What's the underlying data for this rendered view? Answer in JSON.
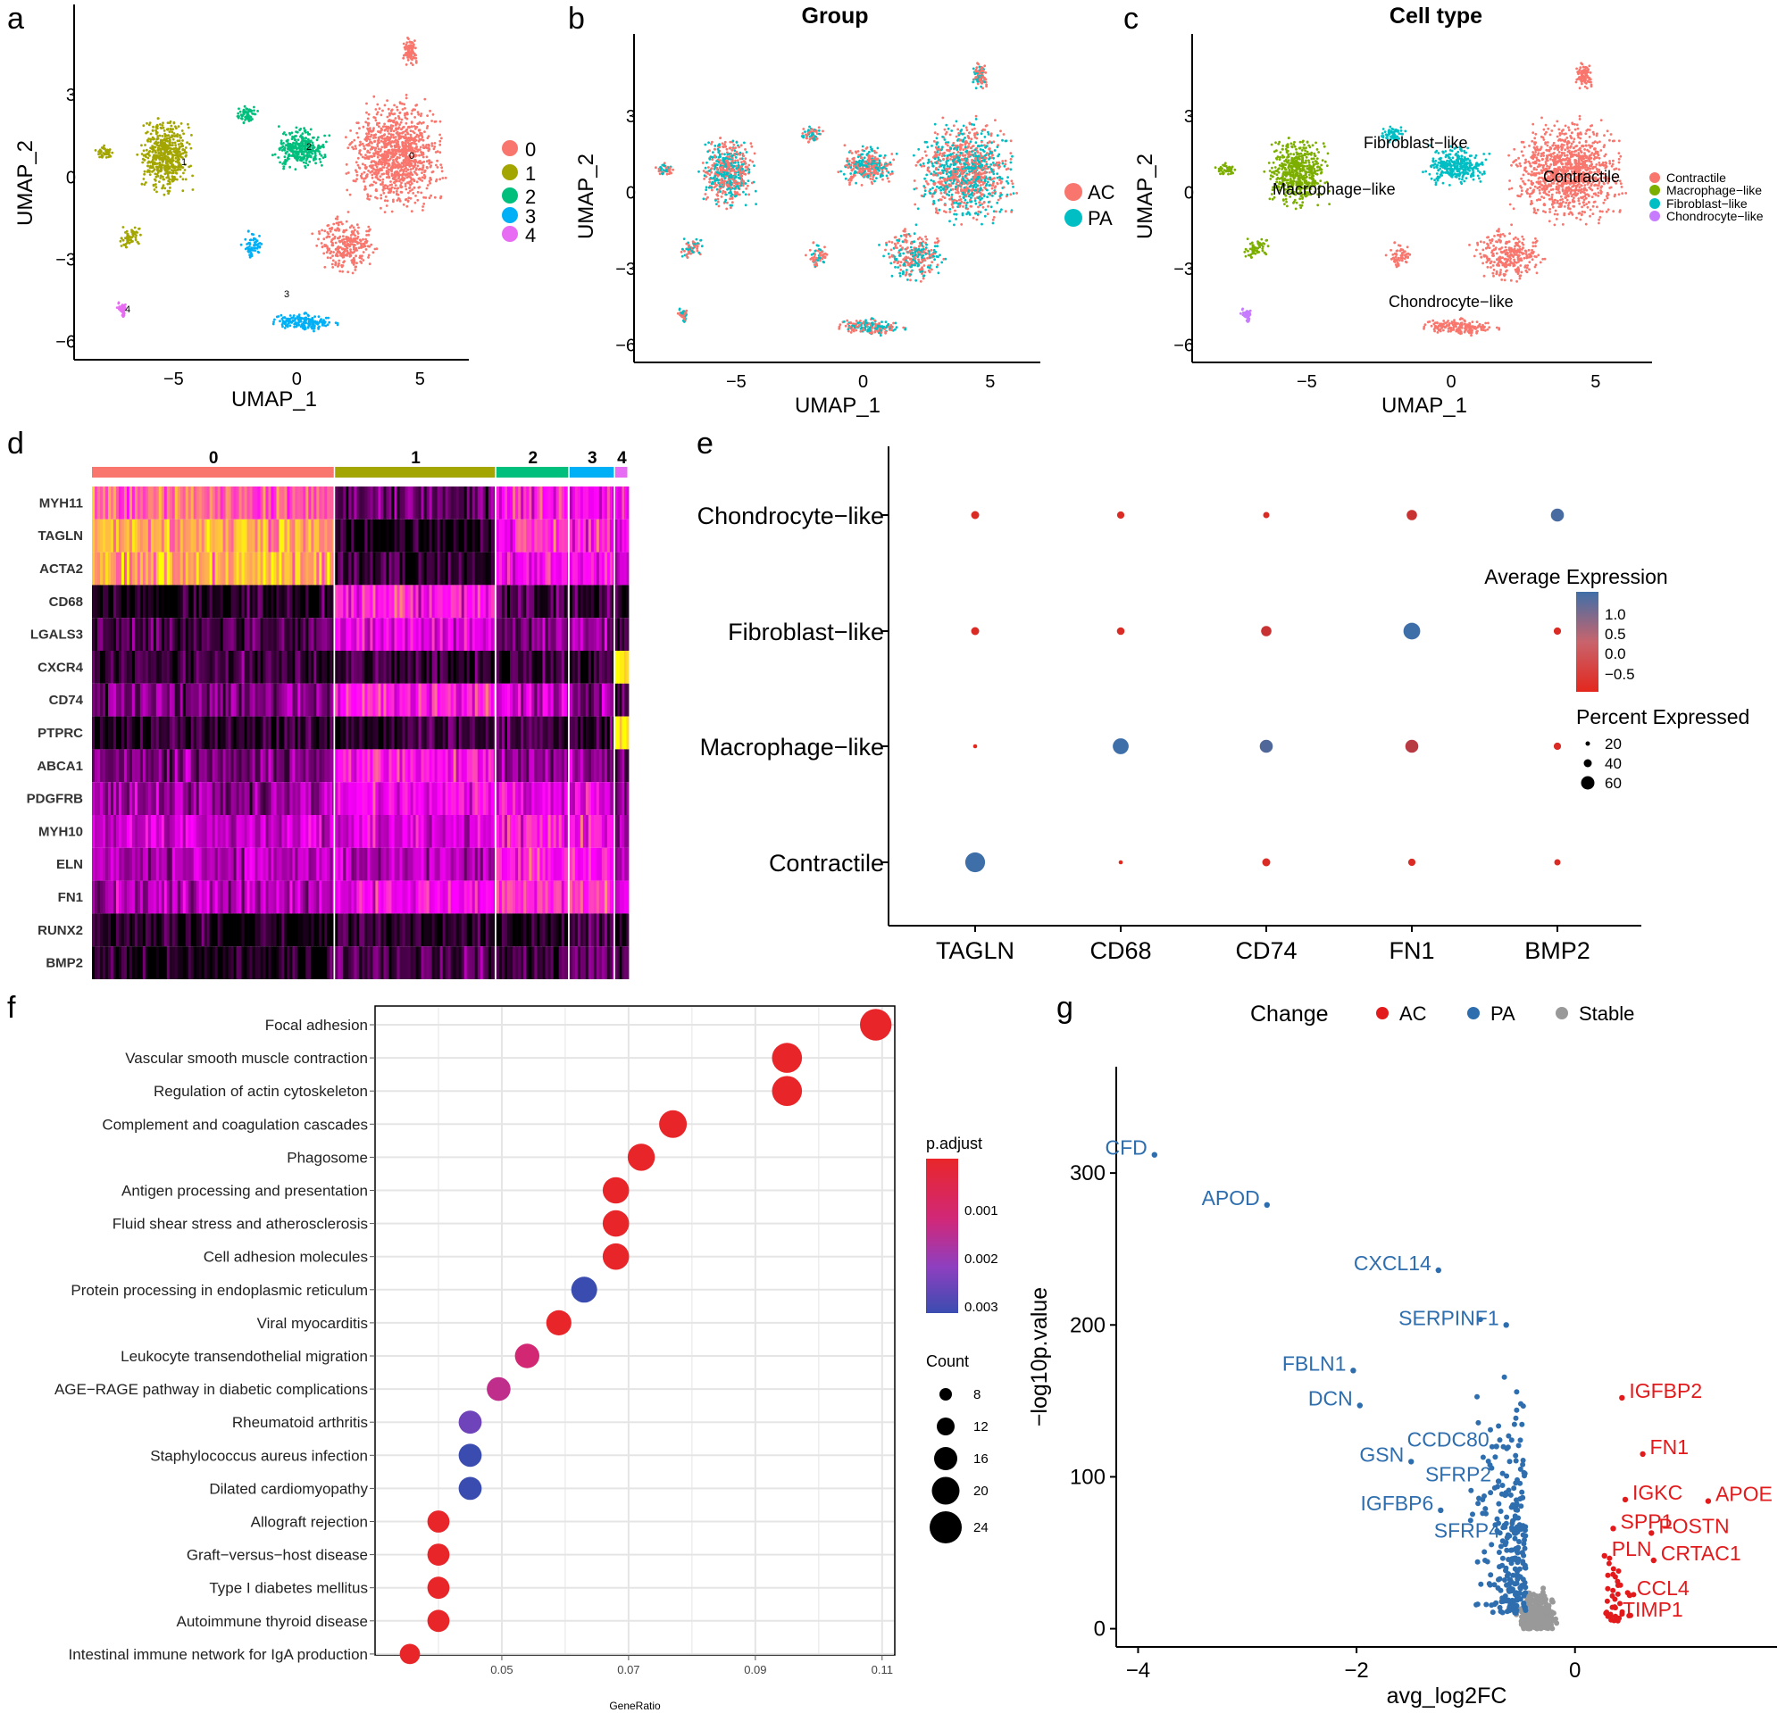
{
  "panels": {
    "a": "a",
    "b": "b",
    "c": "c",
    "d": "d",
    "e": "e",
    "f": "f",
    "g": "g"
  },
  "umap": {
    "xlabel": "UMAP_1",
    "ylabel": "UMAP_2",
    "xticks": [
      -5,
      0,
      5
    ],
    "yticks": [
      3,
      0,
      -3,
      -6
    ],
    "a": {
      "legend": [
        "0",
        "1",
        "2",
        "3",
        "4"
      ],
      "cluster_labels": [
        "0",
        "1",
        "2",
        "3",
        "4"
      ],
      "colors": [
        "#F8766D",
        "#A3A500",
        "#00BF7D",
        "#00B0F6",
        "#E76BF3"
      ]
    },
    "b": {
      "title": "Group",
      "legend": [
        "AC",
        "PA"
      ],
      "colors": [
        "#F8766D",
        "#00BFC4"
      ]
    },
    "c": {
      "title": "Cell type",
      "legend": [
        "Contractile",
        "Macrophage−like",
        "Fibroblast−like",
        "Chondrocyte−like"
      ],
      "labels": [
        "Fibroblast−like",
        "Macrophage−like",
        "Contractile",
        "Chondrocyte−like"
      ],
      "colors": [
        "#F8766D",
        "#7CAE00",
        "#00BFC4",
        "#C77CFF"
      ]
    }
  },
  "chart_data": [
    {
      "type": "heatmap",
      "panel": "d",
      "clusters": [
        "0",
        "1",
        "2",
        "3",
        "4"
      ],
      "cluster_fractions": [
        0.395,
        0.262,
        0.119,
        0.074,
        0.022
      ],
      "cluster_colors": [
        "#F8766D",
        "#A3A500",
        "#00BF7D",
        "#00B0F6",
        "#E76BF3"
      ],
      "genes": [
        "MYH11",
        "TAGLN",
        "ACTA2",
        "CD68",
        "LGALS3",
        "CXCR4",
        "CD74",
        "PTPRC",
        "ABCA1",
        "PDGFRB",
        "MYH10",
        "ELN",
        "FN1",
        "RUNX2",
        "BMP2"
      ],
      "mean_expression": [
        [
          0.7,
          0.2,
          0.55,
          0.45,
          0.5
        ],
        [
          0.85,
          0.05,
          0.6,
          0.55,
          0.45
        ],
        [
          0.85,
          0.1,
          0.55,
          0.5,
          0.45
        ],
        [
          0.05,
          0.55,
          0.15,
          0.1,
          0.05
        ],
        [
          0.15,
          0.45,
          0.25,
          0.3,
          0.1
        ],
        [
          0.1,
          0.1,
          0.1,
          0.1,
          0.95
        ],
        [
          0.25,
          0.55,
          0.4,
          0.25,
          0.2
        ],
        [
          0.1,
          0.1,
          0.1,
          0.1,
          0.95
        ],
        [
          0.25,
          0.55,
          0.3,
          0.3,
          0.2
        ],
        [
          0.3,
          0.5,
          0.45,
          0.45,
          0.25
        ],
        [
          0.4,
          0.45,
          0.55,
          0.55,
          0.3
        ],
        [
          0.35,
          0.35,
          0.55,
          0.6,
          0.3
        ],
        [
          0.35,
          0.5,
          0.6,
          0.6,
          0.4
        ],
        [
          0.05,
          0.1,
          0.05,
          0.15,
          0.05
        ],
        [
          0.05,
          0.15,
          0.1,
          0.2,
          0.05
        ]
      ],
      "palette": [
        "#000000",
        "#FF00FF",
        "#FFFF00"
      ]
    },
    {
      "type": "scatter",
      "panel": "e",
      "x_categories": [
        "TAGLN",
        "CD68",
        "CD74",
        "FN1",
        "BMP2"
      ],
      "y_categories": [
        "Contractile",
        "Macrophage−like",
        "Fibroblast−like",
        "Chondrocyte−like"
      ],
      "points": [
        {
          "x": "TAGLN",
          "y": "Chondrocyte−like",
          "avg": -0.5,
          "pct": 8
        },
        {
          "x": "CD68",
          "y": "Chondrocyte−like",
          "avg": -0.5,
          "pct": 6
        },
        {
          "x": "CD74",
          "y": "Chondrocyte−like",
          "avg": -0.5,
          "pct": 4
        },
        {
          "x": "FN1",
          "y": "Chondrocyte−like",
          "avg": -0.3,
          "pct": 15
        },
        {
          "x": "BMP2",
          "y": "Chondrocyte−like",
          "avg": 1.2,
          "pct": 25
        },
        {
          "x": "TAGLN",
          "y": "Fibroblast−like",
          "avg": -0.5,
          "pct": 8
        },
        {
          "x": "CD68",
          "y": "Fibroblast−like",
          "avg": -0.5,
          "pct": 7
        },
        {
          "x": "CD74",
          "y": "Fibroblast−like",
          "avg": -0.3,
          "pct": 15
        },
        {
          "x": "FN1",
          "y": "Fibroblast−like",
          "avg": 1.3,
          "pct": 45
        },
        {
          "x": "BMP2",
          "y": "Fibroblast−like",
          "avg": -0.5,
          "pct": 6
        },
        {
          "x": "TAGLN",
          "y": "Macrophage−like",
          "avg": -0.6,
          "pct": 1
        },
        {
          "x": "CD68",
          "y": "Macrophage−like",
          "avg": 1.3,
          "pct": 40
        },
        {
          "x": "CD74",
          "y": "Macrophage−like",
          "avg": 1.1,
          "pct": 25
        },
        {
          "x": "FN1",
          "y": "Macrophage−like",
          "avg": -0.1,
          "pct": 25
        },
        {
          "x": "BMP2",
          "y": "Macrophage−like",
          "avg": -0.5,
          "pct": 6
        },
        {
          "x": "TAGLN",
          "y": "Contractile",
          "avg": 1.3,
          "pct": 65
        },
        {
          "x": "CD68",
          "y": "Contractile",
          "avg": -0.6,
          "pct": 1
        },
        {
          "x": "CD74",
          "y": "Contractile",
          "avg": -0.5,
          "pct": 8
        },
        {
          "x": "FN1",
          "y": "Contractile",
          "avg": -0.5,
          "pct": 6
        },
        {
          "x": "BMP2",
          "y": "Contractile",
          "avg": -0.5,
          "pct": 4
        }
      ],
      "color_legend_title": "Average Expression",
      "color_ticks": [
        "1.0",
        "0.5",
        "0.0",
        "−0.5"
      ],
      "size_legend_title": "Percent Expressed",
      "size_ticks": [
        "20",
        "40",
        "60"
      ]
    },
    {
      "type": "scatter",
      "panel": "f",
      "xlabel": "GeneRatio",
      "xticks": [
        "0.05",
        "0.07",
        "0.09",
        "0.11"
      ],
      "xlim": [
        0.03,
        0.112
      ],
      "terms": [
        {
          "name": "Focal adhesion",
          "ratio": 0.109,
          "count": 24,
          "padj": 0.0002
        },
        {
          "name": "Vascular smooth muscle contraction",
          "ratio": 0.095,
          "count": 21,
          "padj": 0.0002
        },
        {
          "name": "Regulation of actin cytoskeleton",
          "ratio": 0.095,
          "count": 21,
          "padj": 0.0002
        },
        {
          "name": "Complement and coagulation cascades",
          "ratio": 0.077,
          "count": 17,
          "padj": 0.0002
        },
        {
          "name": "Phagosome",
          "ratio": 0.072,
          "count": 16,
          "padj": 0.0002
        },
        {
          "name": "Antigen processing and presentation",
          "ratio": 0.068,
          "count": 15,
          "padj": 0.0002
        },
        {
          "name": "Fluid shear stress and atherosclerosis",
          "ratio": 0.068,
          "count": 15,
          "padj": 0.0002
        },
        {
          "name": "Cell adhesion molecules",
          "ratio": 0.068,
          "count": 15,
          "padj": 0.0002
        },
        {
          "name": "Protein processing in endoplasmic reticulum",
          "ratio": 0.063,
          "count": 14,
          "padj": 0.0031
        },
        {
          "name": "Viral myocarditis",
          "ratio": 0.059,
          "count": 13,
          "padj": 0.0002
        },
        {
          "name": "Leukocyte transendothelial migration",
          "ratio": 0.054,
          "count": 12,
          "padj": 0.0011
        },
        {
          "name": "AGE−RAGE pathway in diabetic complications",
          "ratio": 0.0495,
          "count": 11,
          "padj": 0.0014
        },
        {
          "name": "Rheumatoid arthritis",
          "ratio": 0.045,
          "count": 10,
          "padj": 0.0025
        },
        {
          "name": "Staphylococcus aureus infection",
          "ratio": 0.045,
          "count": 10,
          "padj": 0.0031
        },
        {
          "name": "Dilated cardiomyopathy",
          "ratio": 0.045,
          "count": 10,
          "padj": 0.0031
        },
        {
          "name": "Allograft rejection",
          "ratio": 0.04,
          "count": 9,
          "padj": 0.0002
        },
        {
          "name": "Graft−versus−host disease",
          "ratio": 0.04,
          "count": 9,
          "padj": 0.0002
        },
        {
          "name": "Type I diabetes mellitus",
          "ratio": 0.04,
          "count": 9,
          "padj": 0.0002
        },
        {
          "name": "Autoimmune thyroid disease",
          "ratio": 0.04,
          "count": 9,
          "padj": 0.0002
        },
        {
          "name": "Intestinal immune network for IgA production",
          "ratio": 0.0355,
          "count": 7,
          "padj": 0.0002
        }
      ],
      "color_legend_title": "p.adjust",
      "color_ticks": [
        "0.001",
        "0.002",
        "0.003"
      ],
      "size_legend_title": "Count",
      "size_ticks": [
        "8",
        "12",
        "16",
        "20",
        "24"
      ]
    },
    {
      "type": "scatter",
      "panel": "g",
      "xlabel": "avg_log2FC",
      "ylabel": "−log10p.value",
      "xticks": [
        -4,
        -2,
        0
      ],
      "yticks": [
        0,
        100,
        200,
        300
      ],
      "xlim": [
        -4.2,
        1.85
      ],
      "ylim": [
        -12,
        370
      ],
      "legend_title": "Change",
      "legend": [
        "AC",
        "PA",
        "Stable"
      ],
      "colors": {
        "AC": "#E31A1C",
        "PA": "#2E6EAE",
        "Stable": "#999999"
      },
      "labeled_genes": [
        {
          "gene": "CFD",
          "x": -3.85,
          "y": 312,
          "change": "PA"
        },
        {
          "gene": "APOD",
          "x": -2.82,
          "y": 279,
          "change": "PA"
        },
        {
          "gene": "CXCL14",
          "x": -1.25,
          "y": 236,
          "change": "PA"
        },
        {
          "gene": "SERPINF1",
          "x": -0.63,
          "y": 200,
          "change": "PA"
        },
        {
          "gene": "FBLN1",
          "x": -2.03,
          "y": 170,
          "change": "PA"
        },
        {
          "gene": "DCN",
          "x": -1.97,
          "y": 147,
          "change": "PA"
        },
        {
          "gene": "CCDC80",
          "x": -0.72,
          "y": 120,
          "change": "PA"
        },
        {
          "gene": "GSN",
          "x": -1.5,
          "y": 110,
          "change": "PA"
        },
        {
          "gene": "SFRP2",
          "x": -0.7,
          "y": 97,
          "change": "PA"
        },
        {
          "gene": "IGFBP6",
          "x": -1.23,
          "y": 78,
          "change": "PA"
        },
        {
          "gene": "SFRP4",
          "x": -0.62,
          "y": 60,
          "change": "PA"
        },
        {
          "gene": "IGFBP2",
          "x": 0.43,
          "y": 152,
          "change": "AC"
        },
        {
          "gene": "FN1",
          "x": 0.62,
          "y": 115,
          "change": "AC"
        },
        {
          "gene": "APOE",
          "x": 1.22,
          "y": 84,
          "change": "AC"
        },
        {
          "gene": "IGKC",
          "x": 0.46,
          "y": 85,
          "change": "AC"
        },
        {
          "gene": "POSTN",
          "x": 0.7,
          "y": 63,
          "change": "AC"
        },
        {
          "gene": "SPP1",
          "x": 0.35,
          "y": 66,
          "change": "AC"
        },
        {
          "gene": "PLN",
          "x": 0.27,
          "y": 48,
          "change": "AC"
        },
        {
          "gene": "CRTAC1",
          "x": 0.72,
          "y": 45,
          "change": "AC"
        },
        {
          "gene": "CCL4",
          "x": 0.5,
          "y": 22,
          "change": "AC"
        },
        {
          "gene": "TIMP1",
          "x": 0.37,
          "y": 8,
          "change": "AC"
        }
      ]
    }
  ]
}
